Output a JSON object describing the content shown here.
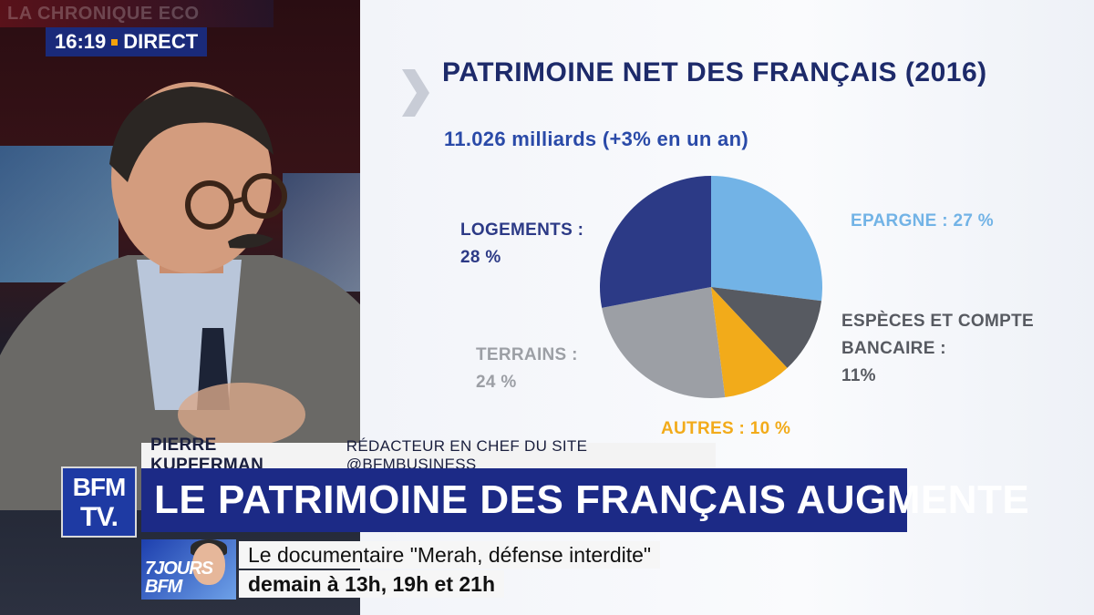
{
  "broadcast": {
    "show_name": "LA CHRONIQUE ECO",
    "clock": "16:19",
    "live_label": "DIRECT",
    "colors": {
      "channel_blue": "#1c2a86",
      "accent_orange": "#f4a20c"
    }
  },
  "chart_data": {
    "type": "pie",
    "title": "PATRIMOINE NET DES FRANÇAIS (2016)",
    "subtitle": "11.026 milliards (+3% en un an)",
    "slices": [
      {
        "label": "EPARGNE :",
        "percent_label": "27 %",
        "value": 27,
        "color": "#72b3e6",
        "label_color": "#72b3e6"
      },
      {
        "label": "ESPÈCES ET COMPTE BANCAIRE :",
        "percent_label": "11%",
        "value": 11,
        "color": "#575a61",
        "label_color": "#575a61"
      },
      {
        "label": "AUTRES :",
        "percent_label": "10 %",
        "value": 10,
        "color": "#f2ab1a",
        "label_color": "#f2ab1a"
      },
      {
        "label": "TERRAINS :",
        "percent_label": "24 %",
        "value": 24,
        "color": "#9c9fa5",
        "label_color": "#9c9fa5"
      },
      {
        "label": "LOGEMENTS :",
        "percent_label": "28 %",
        "value": 28,
        "color": "#2c3a86",
        "label_color": "#2c3a86"
      }
    ]
  },
  "lower_third": {
    "name": "PIERRE KUPFERMAN",
    "role": "RÉDACTEUR EN CHEF DU SITE @BFMBUSINESS",
    "headline": "LE PATRIMOINE DES FRANÇAIS AUGMENTE",
    "logo_line1": "BFM",
    "logo_line2": "TV."
  },
  "promo": {
    "thumb_text": "7JOURS BFM",
    "line1": "Le documentaire \"Merah, défense interdite\"",
    "line2": "demain à 13h, 19h et 21h"
  }
}
